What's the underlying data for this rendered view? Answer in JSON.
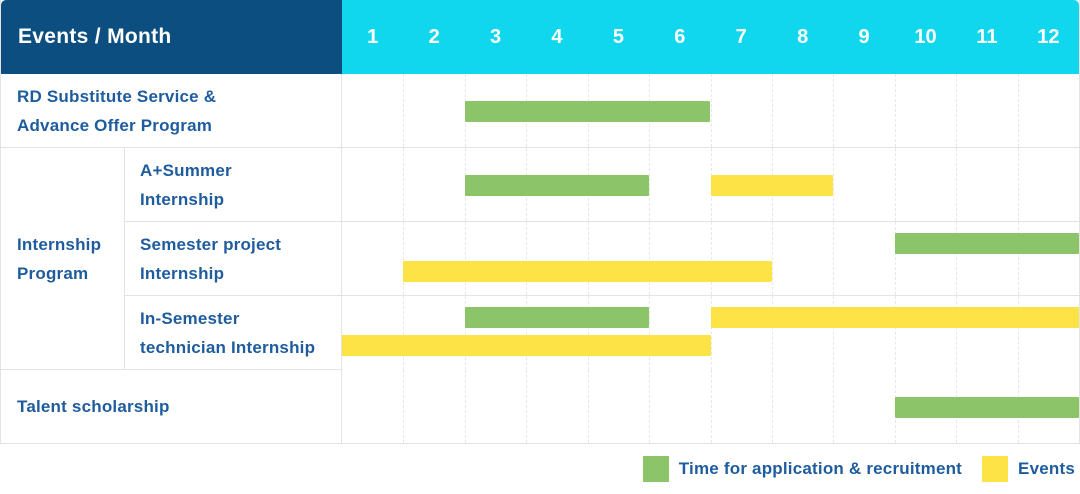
{
  "header": {
    "label": "Events / Month",
    "months": [
      "1",
      "2",
      "3",
      "4",
      "5",
      "6",
      "7",
      "8",
      "9",
      "10",
      "11",
      "12"
    ]
  },
  "internship_group": {
    "label": "Internship\nProgram"
  },
  "rows": [
    {
      "label": "RD Substitute Service &\nAdvance Offer Program",
      "bars": [
        {
          "kind": "recruitment",
          "start": 3,
          "end": 6,
          "lane": "center"
        }
      ]
    },
    {
      "label": "A+Summer\nInternship",
      "bars": [
        {
          "kind": "recruitment",
          "start": 3,
          "end": 5,
          "lane": "center"
        },
        {
          "kind": "events",
          "start": 7,
          "end": 8,
          "lane": "center"
        }
      ]
    },
    {
      "label": "Semester project\nInternship",
      "bars": [
        {
          "kind": "recruitment",
          "start": 10,
          "end": 12,
          "lane": "top"
        },
        {
          "kind": "events",
          "start": 2,
          "end": 7,
          "lane": "bottom"
        }
      ]
    },
    {
      "label": "In-Semester\ntechnician Internship",
      "bars": [
        {
          "kind": "recruitment",
          "start": 3,
          "end": 5,
          "lane": "top"
        },
        {
          "kind": "events",
          "start": 7,
          "end": 12,
          "lane": "top"
        },
        {
          "kind": "events",
          "start": 1,
          "end": 6,
          "lane": "bottom"
        }
      ]
    },
    {
      "label": "Talent scholarship",
      "bars": [
        {
          "kind": "recruitment",
          "start": 10,
          "end": 12,
          "lane": "center"
        }
      ]
    }
  ],
  "legend": {
    "items": [
      {
        "kind": "recruitment",
        "color": "#8cc46a",
        "label": "Time for application & recruitment"
      },
      {
        "kind": "events",
        "color": "#fde345",
        "label": "Events"
      }
    ]
  },
  "colors": {
    "header_navy": "#0d4e81",
    "header_cyan": "#10d7ee",
    "label_blue": "#1e5c9e",
    "bar_green": "#8cc46a",
    "bar_yellow": "#fde345",
    "border": "#e3e3e3"
  },
  "chart_data": {
    "type": "bar",
    "subtype": "gantt",
    "title": "Events / Month",
    "x_unit": "month",
    "x_ticks": [
      1,
      2,
      3,
      4,
      5,
      6,
      7,
      8,
      9,
      10,
      11,
      12
    ],
    "x_range": [
      1,
      12
    ],
    "grid": "vertical-dashed",
    "legend_position": "bottom-right",
    "series_legend": {
      "recruitment": "Time for application & recruitment",
      "events": "Events"
    },
    "tasks": [
      {
        "group": null,
        "name": "RD Substitute Service & Advance Offer Program",
        "application_recruitment_months": [
          [
            3,
            6
          ]
        ],
        "events_months": []
      },
      {
        "group": "Internship Program",
        "name": "A+Summer Internship",
        "application_recruitment_months": [
          [
            3,
            5
          ]
        ],
        "events_months": [
          [
            7,
            8
          ]
        ]
      },
      {
        "group": "Internship Program",
        "name": "Semester project Internship",
        "application_recruitment_months": [
          [
            10,
            12
          ]
        ],
        "events_months": [
          [
            2,
            7
          ]
        ]
      },
      {
        "group": "Internship Program",
        "name": "In-Semester technician Internship",
        "application_recruitment_months": [
          [
            3,
            5
          ]
        ],
        "events_months": [
          [
            1,
            6
          ],
          [
            7,
            12
          ]
        ]
      },
      {
        "group": null,
        "name": "Talent scholarship",
        "application_recruitment_months": [
          [
            10,
            12
          ]
        ],
        "events_months": []
      }
    ]
  }
}
